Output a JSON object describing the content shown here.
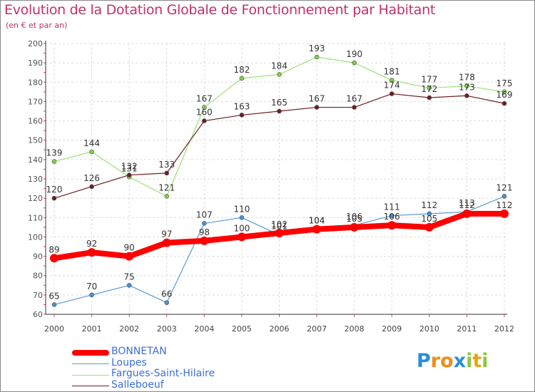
{
  "header": {
    "title": "Evolution de la Dotation Globale de Fonctionnement par Habitant",
    "subtitle": "(en € et par an)"
  },
  "chart_data": {
    "type": "line",
    "title": "Evolution de la Dotation Globale de Fonctionnement par Habitant",
    "subtitle": "(en € et par an)",
    "xlabel": "",
    "ylabel": "",
    "x": [
      "2000",
      "2001",
      "2002",
      "2003",
      "2004",
      "2005",
      "2006",
      "2007",
      "2008",
      "2009",
      "2010",
      "2011",
      "2012"
    ],
    "ylim": [
      60,
      200
    ],
    "yticks": [
      60,
      70,
      80,
      90,
      100,
      110,
      120,
      130,
      140,
      150,
      160,
      170,
      180,
      190,
      200
    ],
    "grid": true,
    "legend_position": "bottom-left",
    "series": [
      {
        "name": "Loupes",
        "color": "#5b9bd5",
        "marker_color": "#4a90d0",
        "values": [
          65,
          70,
          75,
          66,
          107,
          110,
          101,
          104,
          106,
          111,
          112,
          113,
          121
        ]
      },
      {
        "name": "Fargues-Saint-Hilaire",
        "color": "#9ee07a",
        "marker_color": "#7ed04a",
        "values": [
          139,
          144,
          131,
          121,
          167,
          182,
          184,
          193,
          190,
          181,
          177,
          178,
          175
        ]
      },
      {
        "name": "Salleboeuf",
        "color": "#6b1f24",
        "marker_color": "#6b1f24",
        "values": [
          120,
          126,
          132,
          133,
          160,
          163,
          165,
          167,
          167,
          174,
          172,
          173,
          169
        ]
      },
      {
        "name": "BONNETAN",
        "color": "#ff0000",
        "marker_color": "#ff0000",
        "values": [
          89,
          92,
          90,
          97,
          98,
          100,
          102,
          104,
          105,
          106,
          105,
          112,
          112
        ]
      }
    ]
  },
  "legend": [
    {
      "name": "BONNETAN",
      "color": "#ff0000",
      "weight": "thick"
    },
    {
      "name": "Loupes",
      "color": "#5b9bd5",
      "weight": "thin"
    },
    {
      "name": "Fargues-Saint-Hilaire",
      "color": "#9ee07a",
      "weight": "thin"
    },
    {
      "name": "Salleboeuf",
      "color": "#6b1f24",
      "weight": "thin"
    }
  ],
  "logo": {
    "letters": [
      {
        "char": "P",
        "color": "#2a8fd8"
      },
      {
        "char": "r",
        "color": "#f08c1a"
      },
      {
        "char": "o",
        "color": "#f08c1a"
      },
      {
        "char": "x",
        "color": "#2a8fd8"
      },
      {
        "char": "i",
        "color": "#8cc63f"
      },
      {
        "char": "t",
        "color": "#e8a318"
      },
      {
        "char": "i",
        "color": "#8cc63f"
      }
    ]
  }
}
